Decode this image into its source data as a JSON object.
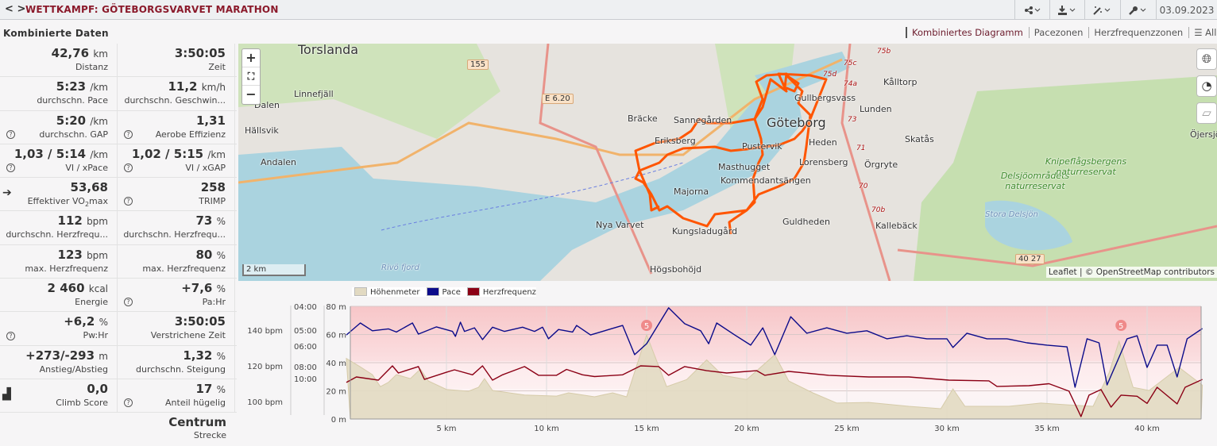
{
  "header": {
    "title": "WETTKAMPF: GÖTEBORGSVARVET MARATHON",
    "nav_back": "<",
    "nav_forward": ">",
    "buttons": [
      "share-icon",
      "download-icon",
      "magic-wand-icon",
      "wrench-icon"
    ],
    "date": "03.09.2023"
  },
  "section_title": "Kombinierte Daten",
  "tabs": [
    "Kombiniertes Diagramm",
    "Pacezonen",
    "Herzfrequenzzonen",
    "Alle"
  ],
  "stats": [
    [
      {
        "value": "42,76",
        "unit": "km",
        "label": "Distanz"
      },
      {
        "value": "3:50:05",
        "unit": "",
        "label": "Zeit"
      }
    ],
    [
      {
        "value": "5:23",
        "unit": "/km",
        "label": "durchschn. Pace"
      },
      {
        "value": "11,2",
        "unit": "km/h",
        "label": "durchschn. Geschwin..."
      }
    ],
    [
      {
        "value": "5:20",
        "unit": "/km",
        "label": "durchschn. GAP",
        "help": true
      },
      {
        "value": "1,31",
        "unit": "",
        "label": "Aerobe Effizienz",
        "help": true
      }
    ],
    [
      {
        "value": "1,03 / 5:14",
        "unit": "/km",
        "label": "VI / xPace",
        "help": true
      },
      {
        "value": "1,02 / 5:15",
        "unit": "/km",
        "label": "VI / xGAP",
        "help": true
      }
    ],
    [
      {
        "value": "53,68",
        "unit": "",
        "label": "Effektiver VO",
        "label_sub": "2",
        "label_after": "max",
        "icon": "arrow-right-icon"
      },
      {
        "value": "258",
        "unit": "",
        "label": "TRIMP",
        "help": true
      }
    ],
    [
      {
        "value": "112",
        "unit": "bpm",
        "label": "durchschn. Herzfrequ..."
      },
      {
        "value": "73",
        "unit": "%",
        "label": "durchschn. Herzfrequ..."
      }
    ],
    [
      {
        "value": "123",
        "unit": "bpm",
        "label": "max. Herzfrequenz"
      },
      {
        "value": "80",
        "unit": "%",
        "label": "max. Herzfrequenz"
      }
    ],
    [
      {
        "value": "2 460",
        "unit": "kcal",
        "label": "Energie"
      },
      {
        "value": "+7,6",
        "unit": "%",
        "label": "Pa:Hr",
        "help": true
      }
    ],
    [
      {
        "value": "+6,2",
        "unit": "%",
        "label": "Pw:Hr",
        "help": true
      },
      {
        "value": "3:50:05",
        "unit": "",
        "label": "Verstrichene Zeit"
      }
    ],
    [
      {
        "value": "+273/-293",
        "unit": "m",
        "label": "Anstieg/Abstieg"
      },
      {
        "value": "1,32",
        "unit": "%",
        "label": "durchschn. Steigung"
      }
    ],
    [
      {
        "value": "0,0",
        "unit": "",
        "label": "Climb Score",
        "icon": "climb-chart-icon"
      },
      {
        "value": "17",
        "unit": "%",
        "label": "Anteil hügelig",
        "help": true
      }
    ]
  ],
  "route": {
    "value": "Centrum",
    "label": "Strecke"
  },
  "map": {
    "labels": [
      "Torslanda",
      "Linnefjäll",
      "Dalen",
      "Hällsvik",
      "Andalen",
      "Bräcke",
      "Sannegården",
      "Eriksberg",
      "Göteborg",
      "Gullbergsvass",
      "Lunden",
      "Kålltorp",
      "Skatås",
      "Heden",
      "Lorensberg",
      "Örgryte",
      "Pustervik",
      "Masthugget",
      "Kommendantsängen",
      "Majorna",
      "Nya Varvet",
      "Kungsladugård",
      "Guldheden",
      "Kallebäck",
      "Högsbohöjd",
      "Öjersjö"
    ],
    "nature_labels": [
      "Delsjöområdets naturreservat",
      "Knipeflågsbergens naturreservat"
    ],
    "water_labels": [
      "Stora Delsjön",
      "Rivö fjord"
    ],
    "road_shields": [
      "155",
      "E 6.20",
      "40 27"
    ],
    "road_refs": [
      "75b",
      "75c",
      "75d",
      "74a",
      "73",
      "71",
      "70",
      "70b"
    ],
    "zoom_in": "+",
    "zoom_out": "−",
    "fullscreen": "⛶",
    "scale": "2 km",
    "attribution": "Leaflet | © OpenStreetMap contributors",
    "route_color": "#ff5500"
  },
  "chart_data": {
    "type": "line",
    "legend": [
      {
        "name": "Höhenmeter",
        "color": "#e2dac2"
      },
      {
        "name": "Pace",
        "color": "#0b0b8a"
      },
      {
        "name": "Herzfrequenz",
        "color": "#8b0015"
      }
    ],
    "x_ticks": [
      "5 km",
      "10 km",
      "15 km",
      "20 km",
      "25 km",
      "30 km",
      "35 km",
      "40 km"
    ],
    "x_tick_values": [
      5,
      10,
      15,
      20,
      25,
      30,
      35,
      40
    ],
    "xlim": [
      0,
      42.76
    ],
    "elevation_axis": {
      "ticks": [
        "0 m",
        "20 m",
        "40 m",
        "60 m",
        "80 m"
      ],
      "values": [
        0,
        20,
        40,
        60,
        80
      ],
      "ylim": [
        0,
        80
      ]
    },
    "pace_axis": {
      "ticks": [
        "04:00",
        "05:00",
        "06:00",
        "08:00",
        "10:00"
      ]
    },
    "hr_axis": {
      "ticks": [
        "100 bpm",
        "120 bpm",
        "140 bpm"
      ],
      "values": [
        100,
        120,
        140
      ]
    },
    "elevation": [
      [
        0,
        43
      ],
      [
        0.7,
        37
      ],
      [
        1.3,
        31.5
      ],
      [
        1.7,
        23
      ],
      [
        2.1,
        26
      ],
      [
        2.5,
        31.5
      ],
      [
        3.2,
        28.7
      ],
      [
        3.7,
        35.5
      ],
      [
        4.1,
        27
      ],
      [
        5,
        21
      ],
      [
        6.1,
        19.7
      ],
      [
        6.6,
        22.5
      ],
      [
        6.9,
        28.7
      ],
      [
        7.3,
        20.3
      ],
      [
        8.9,
        17
      ],
      [
        10.5,
        16.3
      ],
      [
        11.1,
        18.6
      ],
      [
        12.4,
        15.8
      ],
      [
        13.3,
        18.6
      ],
      [
        14,
        15.8
      ],
      [
        15,
        59.7
      ],
      [
        16,
        23
      ],
      [
        17,
        28
      ],
      [
        18,
        42
      ],
      [
        18.8,
        31
      ],
      [
        20,
        28
      ],
      [
        21.4,
        45.6
      ],
      [
        22.1,
        27
      ],
      [
        23.3,
        18.6
      ],
      [
        24.5,
        11.3
      ],
      [
        26.1,
        11.8
      ],
      [
        28.1,
        9
      ],
      [
        29.7,
        7.3
      ],
      [
        30.3,
        21.4
      ],
      [
        30.9,
        9
      ],
      [
        33.1,
        9
      ],
      [
        34.7,
        11.3
      ],
      [
        36.1,
        10
      ],
      [
        37.3,
        9
      ],
      [
        38.1,
        32.7
      ],
      [
        38.6,
        55.2
      ],
      [
        39.3,
        22.5
      ],
      [
        40.1,
        20.3
      ],
      [
        41.6,
        36.6
      ],
      [
        42.76,
        24
      ]
    ],
    "pace": [
      [
        0,
        "5:16"
      ],
      [
        0.7,
        "4:39"
      ],
      [
        1.3,
        "5:02"
      ],
      [
        2.1,
        "4:56"
      ],
      [
        2.5,
        "5:06"
      ],
      [
        3.3,
        "4:39"
      ],
      [
        3.6,
        "5:13"
      ],
      [
        4.5,
        "4:50"
      ],
      [
        5.3,
        "5:04"
      ],
      [
        5.45,
        "5:21"
      ],
      [
        5.7,
        "4:37"
      ],
      [
        5.9,
        "5:04"
      ],
      [
        6.4,
        "4:53"
      ],
      [
        6.8,
        "5:33"
      ],
      [
        7.3,
        "4:51"
      ],
      [
        7.9,
        "5:04"
      ],
      [
        8.8,
        "4:51"
      ],
      [
        9.4,
        "5:04"
      ],
      [
        9.8,
        "4:51"
      ],
      [
        10.1,
        "5:30"
      ],
      [
        10.6,
        "4:58"
      ],
      [
        11.3,
        "5:06"
      ],
      [
        11.5,
        "4:46"
      ],
      [
        12.2,
        "5:16"
      ],
      [
        12.9,
        "5:02"
      ],
      [
        13.8,
        "4:46"
      ],
      [
        14.4,
        "6:44"
      ],
      [
        15,
        "5:50"
      ],
      [
        16.1,
        "4:03"
      ],
      [
        16.9,
        "4:41"
      ],
      [
        17.7,
        "5:02"
      ],
      [
        18.1,
        "5:50"
      ],
      [
        18.5,
        "4:39"
      ],
      [
        19.4,
        "5:16"
      ],
      [
        20.2,
        "5:56"
      ],
      [
        20.8,
        "4:53"
      ],
      [
        21.4,
        "6:44"
      ],
      [
        22.2,
        "4:23"
      ],
      [
        23,
        "5:10"
      ],
      [
        24,
        "4:53"
      ],
      [
        25,
        "5:10"
      ],
      [
        26,
        "5:02"
      ],
      [
        27,
        "5:30"
      ],
      [
        28,
        "5:19"
      ],
      [
        29,
        "5:30"
      ],
      [
        30,
        "5:30"
      ],
      [
        30.3,
        "6:07"
      ],
      [
        31,
        "5:10"
      ],
      [
        32,
        "5:30"
      ],
      [
        33,
        "5:30"
      ],
      [
        34,
        "5:46"
      ],
      [
        35,
        "5:56"
      ],
      [
        36,
        "6:04"
      ],
      [
        36.4,
        "12:30"
      ],
      [
        37,
        "5:30"
      ],
      [
        37.6,
        "5:46"
      ],
      [
        38,
        "11:46"
      ],
      [
        39,
        "5:30"
      ],
      [
        39.5,
        "5:19"
      ],
      [
        40,
        "8:13"
      ],
      [
        40.5,
        "5:56"
      ],
      [
        41,
        "5:56"
      ],
      [
        41.5,
        "9:50"
      ],
      [
        42,
        "5:30"
      ],
      [
        42.76,
        "4:55"
      ]
    ],
    "heart_rate": [
      [
        0,
        110.7
      ],
      [
        0.5,
        113.8
      ],
      [
        1.6,
        112
      ],
      [
        2.3,
        120
      ],
      [
        2.6,
        116
      ],
      [
        3.6,
        119.6
      ],
      [
        3.9,
        112.4
      ],
      [
        5,
        116.4
      ],
      [
        5.4,
        117.8
      ],
      [
        6.3,
        115
      ],
      [
        6.8,
        120
      ],
      [
        7.3,
        112
      ],
      [
        7.8,
        115
      ],
      [
        8.9,
        119.6
      ],
      [
        9.6,
        114.7
      ],
      [
        10.5,
        114.7
      ],
      [
        11,
        118
      ],
      [
        11.8,
        115
      ],
      [
        12.4,
        114
      ],
      [
        13.8,
        115
      ],
      [
        14.7,
        120
      ],
      [
        15.6,
        119.6
      ],
      [
        16.1,
        114.7
      ],
      [
        16.9,
        119.6
      ],
      [
        18,
        117.3
      ],
      [
        19,
        116
      ],
      [
        20.5,
        117.3
      ],
      [
        20.9,
        114.7
      ],
      [
        22.1,
        116.9
      ],
      [
        24.1,
        114.7
      ],
      [
        26.1,
        113.8
      ],
      [
        28.1,
        113.8
      ],
      [
        30.1,
        112
      ],
      [
        32.1,
        111.6
      ],
      [
        32.5,
        108.5
      ],
      [
        34.1,
        108.9
      ],
      [
        35.1,
        110
      ],
      [
        36.1,
        105.8
      ],
      [
        36.7,
        91.6
      ],
      [
        37.1,
        103.6
      ],
      [
        37.7,
        106.7
      ],
      [
        38.2,
        96.9
      ],
      [
        38.7,
        103.6
      ],
      [
        39.5,
        103
      ],
      [
        40,
        99
      ],
      [
        40.5,
        108
      ],
      [
        41.5,
        98.7
      ],
      [
        41.9,
        108
      ],
      [
        42.76,
        112.4
      ]
    ],
    "annotations": [
      {
        "km": 15,
        "label": "5"
      },
      {
        "km": 38.7,
        "label": "5"
      }
    ]
  }
}
